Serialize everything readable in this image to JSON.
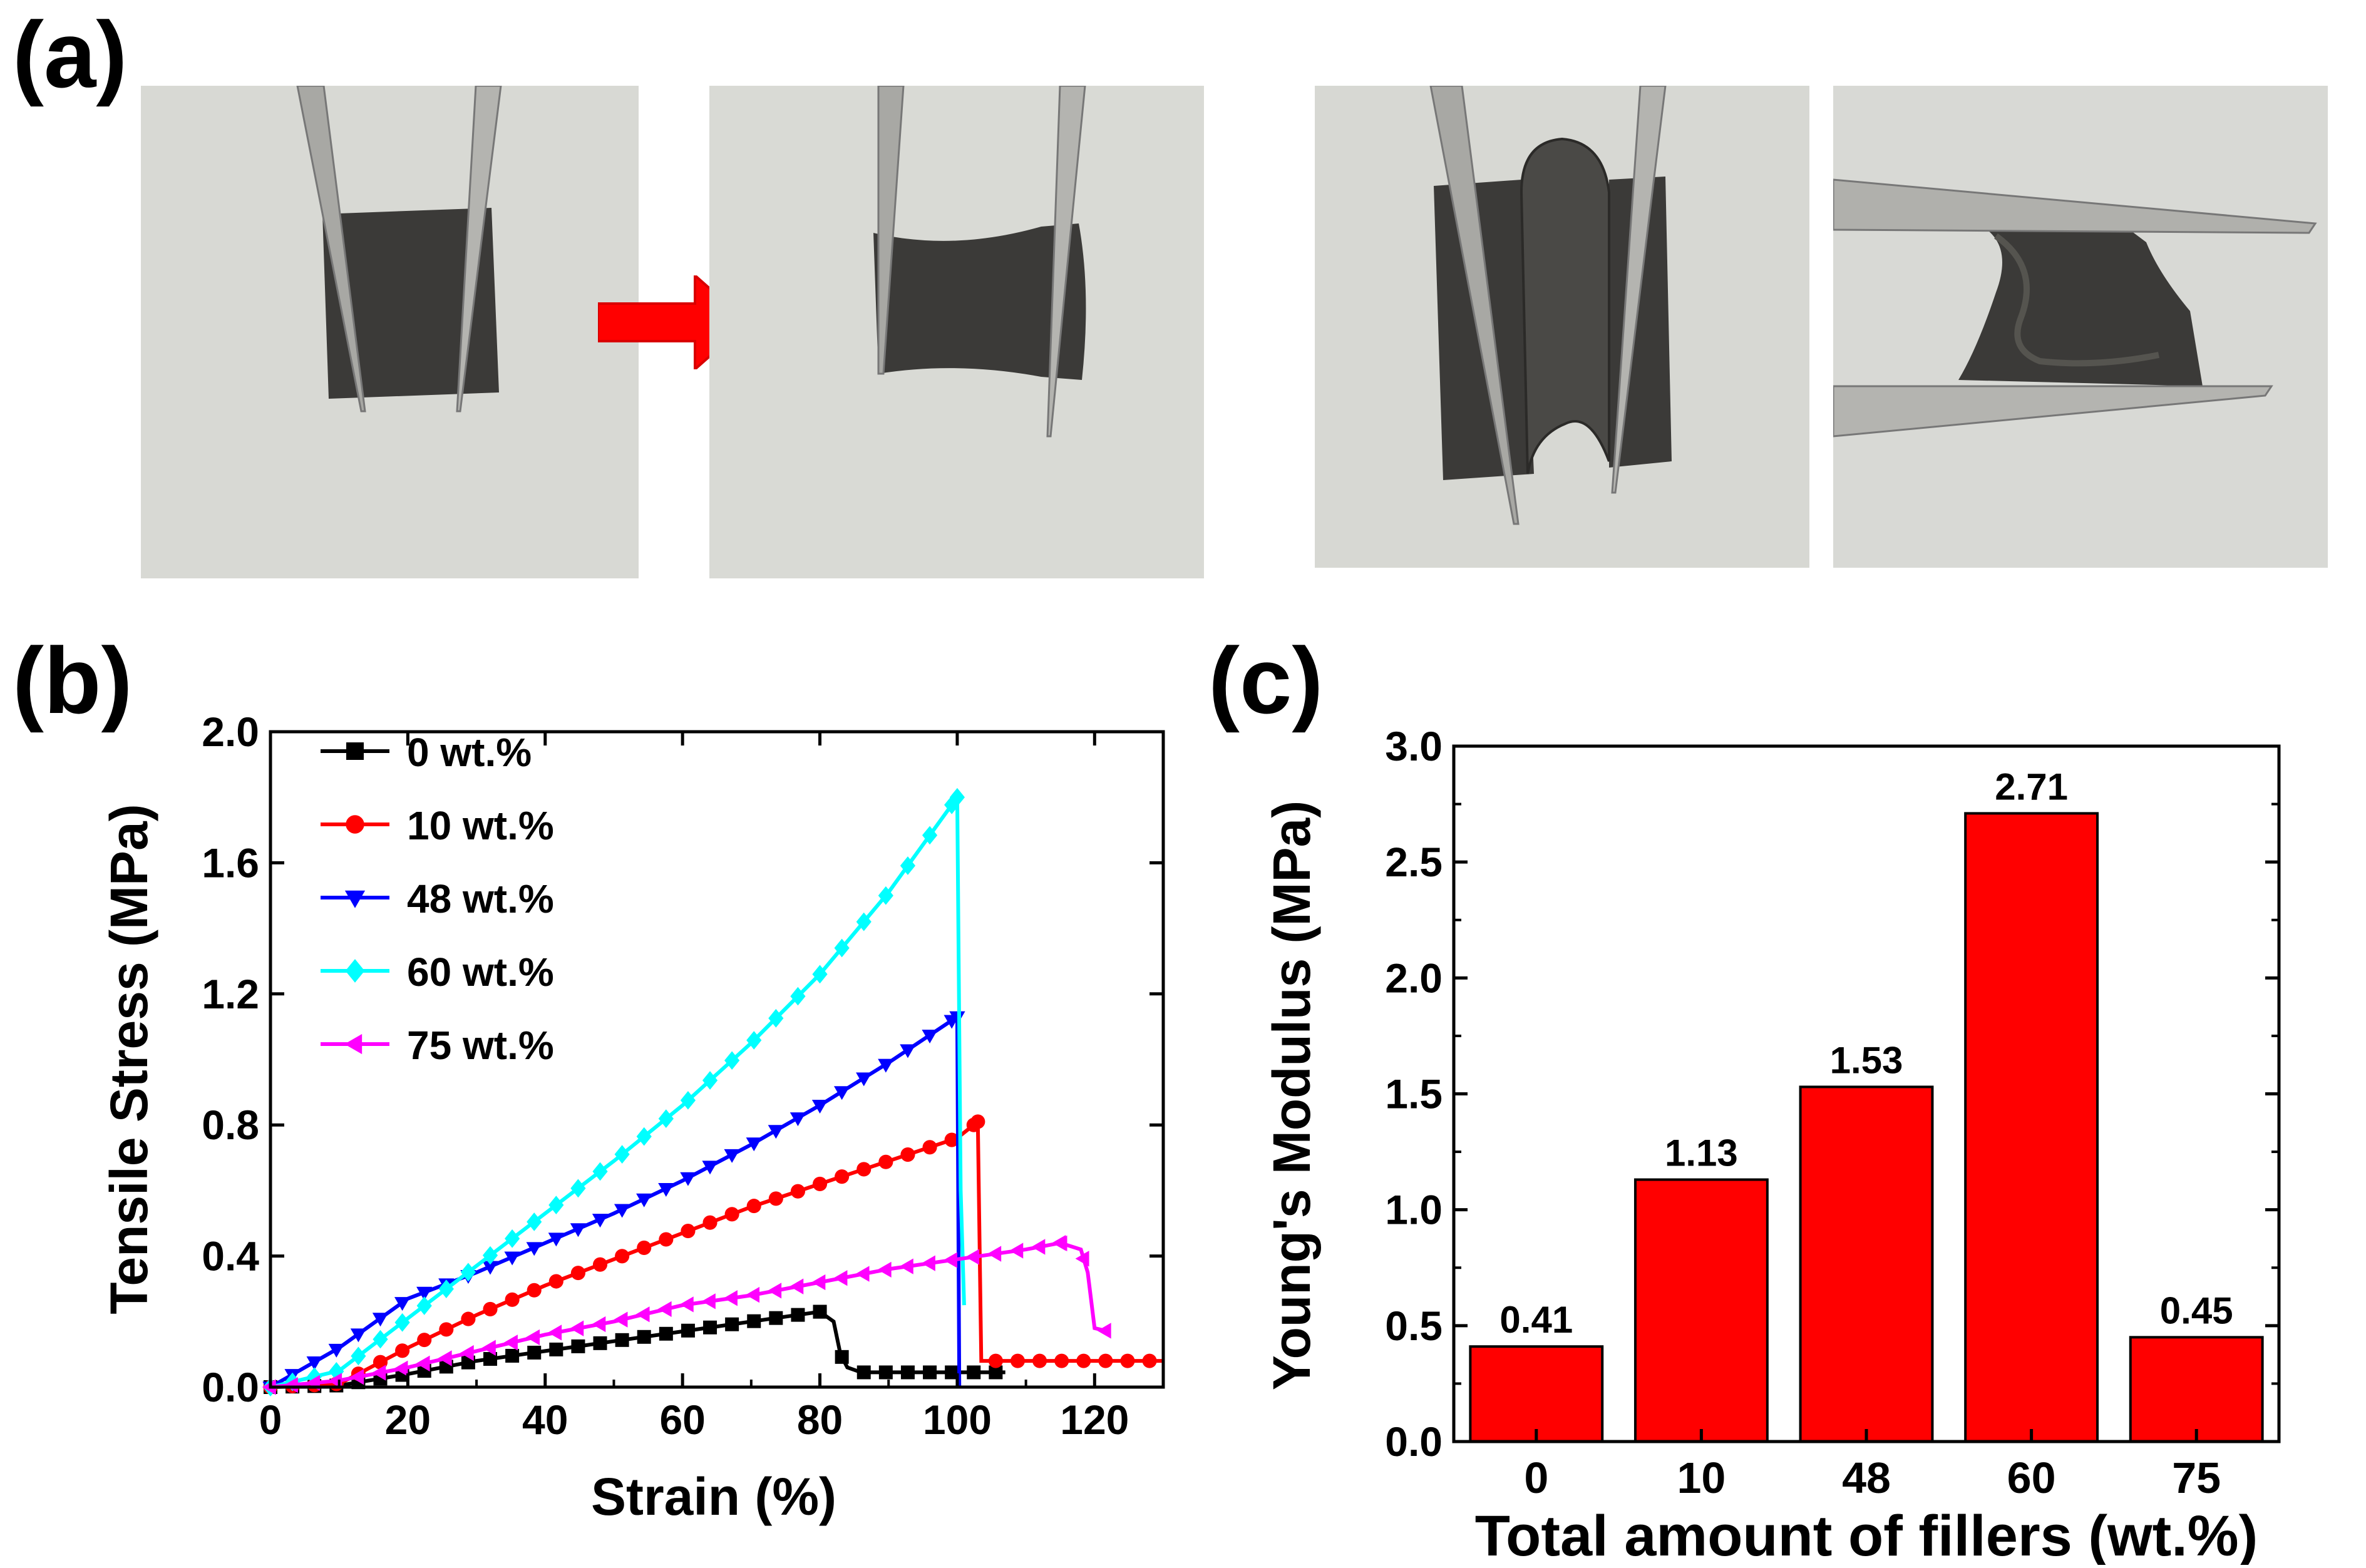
{
  "panels": {
    "a": "(a)",
    "b": "(b)",
    "c": "(c)"
  },
  "photos": [
    {
      "name": "film-held-by-tweezers",
      "bg": "#d8d9d4"
    },
    {
      "name": "film-stretched-by-tweezers",
      "bg": "#d9dad5"
    },
    {
      "name": "film-bent-by-tweezers",
      "bg": "#d7d8d3"
    },
    {
      "name": "film-twisted-by-tweezers",
      "bg": "#d8d9d5"
    }
  ],
  "colors": {
    "arrow": "#ff0000",
    "film": "#3b3a38",
    "tweezer": "#a8a8a4"
  },
  "chart_data": [
    {
      "type": "line",
      "title": "",
      "xlabel": "Strain (%)",
      "ylabel": "Tensile Stress (MPa)",
      "xlim": [
        0,
        130
      ],
      "ylim": [
        0,
        2.0
      ],
      "xticks": [
        0,
        20,
        40,
        60,
        80,
        100,
        120
      ],
      "xtick_labels": [
        "0",
        "20",
        "40",
        "60",
        "80",
        "100",
        "120"
      ],
      "yticks": [
        0,
        0.4,
        0.8,
        1.2,
        1.6,
        2.0
      ],
      "ytick_labels": [
        "0.0",
        "0.4",
        "0.8",
        "1.2",
        "1.6",
        "2.0"
      ],
      "legend_position": "top-left",
      "series": [
        {
          "name": "0 wt.%",
          "color": "#000000",
          "marker": "square",
          "x": [
            0,
            10,
            20,
            30,
            40,
            50,
            60,
            70,
            80,
            82,
            83,
            84,
            86,
            90,
            100,
            107
          ],
          "y": [
            0,
            0.005,
            0.04,
            0.08,
            0.11,
            0.14,
            0.17,
            0.2,
            0.23,
            0.2,
            0.1,
            0.06,
            0.045,
            0.045,
            0.045,
            0.045
          ]
        },
        {
          "name": "10 wt.%",
          "color": "#ff0000",
          "marker": "circle",
          "x": [
            0,
            10,
            20,
            30,
            40,
            50,
            60,
            70,
            80,
            90,
            100,
            103,
            103.5,
            104,
            110,
            120,
            130
          ],
          "y": [
            0,
            0.01,
            0.12,
            0.22,
            0.31,
            0.39,
            0.47,
            0.55,
            0.62,
            0.69,
            0.76,
            0.81,
            0.08,
            0.08,
            0.08,
            0.08,
            0.08
          ]
        },
        {
          "name": "48 wt.%",
          "color": "#0000ff",
          "marker": "triangle-down",
          "x": [
            0,
            10,
            20,
            30,
            40,
            50,
            60,
            70,
            80,
            90,
            100,
            100.3
          ],
          "y": [
            0,
            0.12,
            0.27,
            0.35,
            0.44,
            0.53,
            0.63,
            0.74,
            0.86,
            0.99,
            1.13,
            0.0
          ]
        },
        {
          "name": "60 wt.%",
          "color": "#00ffff",
          "marker": "diamond",
          "x": [
            0,
            10,
            20,
            30,
            40,
            50,
            60,
            70,
            80,
            90,
            100,
            100.5,
            101
          ],
          "y": [
            0,
            0.05,
            0.21,
            0.37,
            0.53,
            0.69,
            0.86,
            1.05,
            1.26,
            1.51,
            1.8,
            0.6,
            0.25
          ]
        },
        {
          "name": "75 wt.%",
          "color": "#ff00ff",
          "marker": "triangle-left",
          "x": [
            0,
            10,
            20,
            30,
            40,
            50,
            60,
            70,
            80,
            90,
            100,
            110,
            115,
            118,
            119,
            120,
            122
          ],
          "y": [
            0,
            0.02,
            0.06,
            0.11,
            0.16,
            0.2,
            0.25,
            0.28,
            0.32,
            0.36,
            0.39,
            0.42,
            0.44,
            0.42,
            0.35,
            0.18,
            0.17
          ]
        }
      ]
    },
    {
      "type": "bar",
      "title": "",
      "xlabel": "Total amount of fillers (wt.%)",
      "ylabel": "Young's Modulus (MPa)",
      "categories": [
        "0",
        "10",
        "48",
        "60",
        "75"
      ],
      "values": [
        0.41,
        1.13,
        1.53,
        2.71,
        0.45
      ],
      "value_labels": [
        "0.41",
        "1.13",
        "1.53",
        "2.71",
        "0.45"
      ],
      "ylim": [
        0,
        3.0
      ],
      "yticks": [
        0,
        0.5,
        1.0,
        1.5,
        2.0,
        2.5,
        3.0
      ],
      "ytick_labels": [
        "0.0",
        "0.5",
        "1.0",
        "1.5",
        "2.0",
        "2.5",
        "3.0"
      ],
      "bar_color": "#ff0000"
    }
  ]
}
